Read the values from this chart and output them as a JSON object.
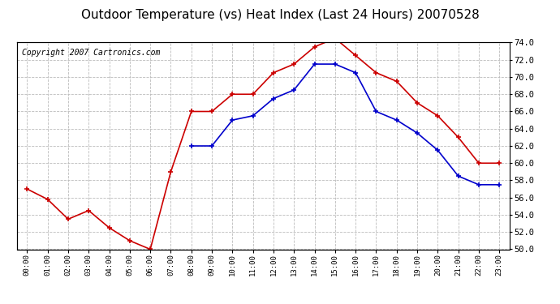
{
  "title": "Outdoor Temperature (vs) Heat Index (Last 24 Hours) 20070528",
  "copyright": "Copyright 2007 Cartronics.com",
  "hours": [
    "00:00",
    "01:00",
    "02:00",
    "03:00",
    "04:00",
    "05:00",
    "06:00",
    "07:00",
    "08:00",
    "09:00",
    "10:00",
    "11:00",
    "12:00",
    "13:00",
    "14:00",
    "15:00",
    "16:00",
    "17:00",
    "18:00",
    "19:00",
    "20:00",
    "21:00",
    "22:00",
    "23:00"
  ],
  "temp": [
    57.0,
    55.8,
    53.5,
    54.5,
    52.5,
    51.0,
    50.0,
    59.0,
    66.0,
    66.0,
    68.0,
    68.0,
    70.5,
    71.5,
    73.5,
    74.5,
    72.5,
    70.5,
    69.5,
    67.0,
    65.5,
    63.0,
    60.0,
    60.0
  ],
  "heat_index": [
    null,
    null,
    null,
    null,
    null,
    null,
    null,
    null,
    62.0,
    62.0,
    65.0,
    65.5,
    67.5,
    68.5,
    71.5,
    71.5,
    70.5,
    66.0,
    65.0,
    63.5,
    61.5,
    58.5,
    57.5,
    57.5
  ],
  "temp_color": "#cc0000",
  "heat_color": "#0000cc",
  "bg_color": "#ffffff",
  "grid_color": "#bbbbbb",
  "ylim": [
    50.0,
    74.0
  ],
  "ytick_step": 2.0,
  "title_fontsize": 11,
  "copyright_fontsize": 7
}
